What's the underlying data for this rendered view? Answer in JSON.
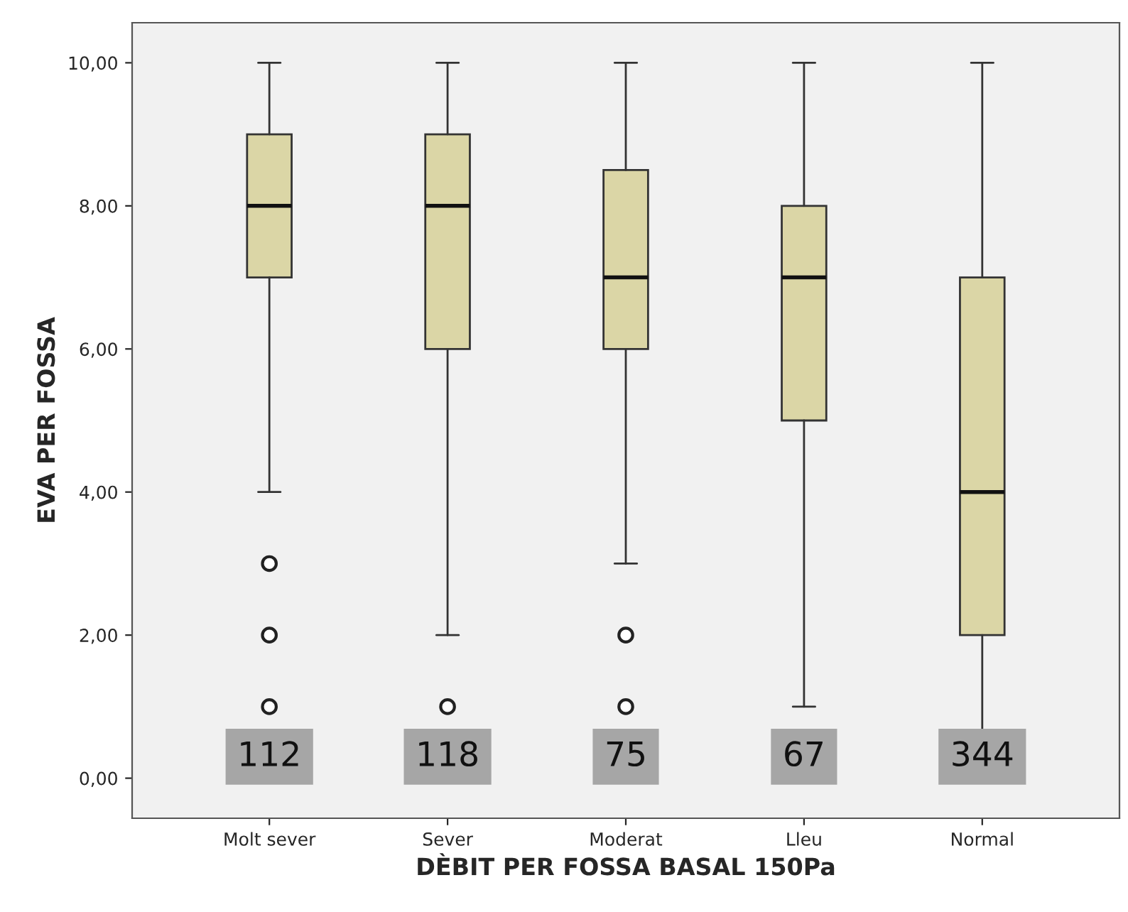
{
  "chart_data": {
    "type": "box",
    "xlabel": "DÈBIT PER FOSSA BASAL 150Pa",
    "ylabel": "EVA PER FOSSA",
    "categories": [
      "Molt sever",
      "Sever",
      "Moderat",
      "Lleu",
      "Normal"
    ],
    "color": "#dbd6a6",
    "boxes": [
      {
        "low": 4,
        "q1": 7,
        "median": 8,
        "q3": 9,
        "high": 10,
        "outliers": [
          3,
          2,
          1
        ]
      },
      {
        "low": 2,
        "q1": 6,
        "median": 8,
        "q3": 9,
        "high": 10,
        "outliers": [
          1
        ]
      },
      {
        "low": 3,
        "q1": 6,
        "median": 7,
        "q3": 8.5,
        "high": 10,
        "outliers": [
          2,
          1
        ]
      },
      {
        "low": 1,
        "q1": 5,
        "median": 7,
        "q3": 8,
        "high": 10
      },
      {
        "low": 0,
        "q1": 2,
        "median": 4,
        "q3": 7,
        "high": 10
      }
    ],
    "annotations": [
      "112",
      "118",
      "75",
      "67",
      "344"
    ],
    "ylim": [
      -0.56,
      10.56
    ],
    "yticks": [
      {
        "value": 0,
        "label": "0,00"
      },
      {
        "value": 2,
        "label": "2,00"
      },
      {
        "value": 4,
        "label": "4,00"
      },
      {
        "value": 6,
        "label": "6,00"
      },
      {
        "value": 8,
        "label": "8,00"
      },
      {
        "value": 10,
        "label": "10,00"
      }
    ],
    "grid": false
  }
}
